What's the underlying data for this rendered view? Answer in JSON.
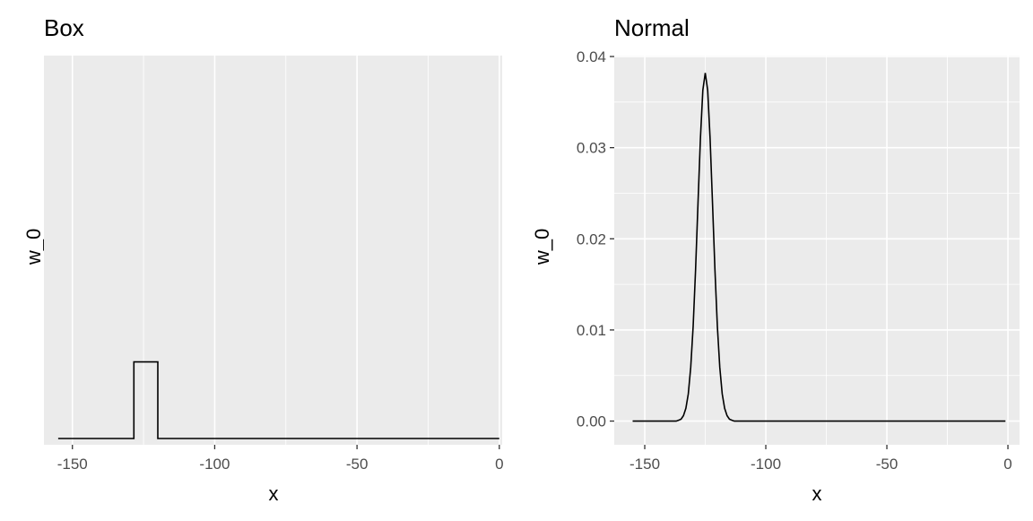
{
  "chart_data": [
    {
      "type": "line",
      "title": "Box",
      "xlabel": "x",
      "ylabel": "w_0",
      "xlim": [
        -160,
        1
      ],
      "xticks": [
        -150,
        -100,
        -50,
        0
      ],
      "xtick_labels": [
        "-150",
        "-100",
        "-50",
        "0"
      ],
      "yticks": [],
      "ylim": [
        0,
        5
      ],
      "grid": true,
      "series": [
        {
          "name": "box",
          "x": [
            -155,
            -128.4,
            -128.4,
            -120,
            -120,
            0
          ],
          "y": [
            0,
            0,
            1,
            1,
            0,
            0
          ]
        }
      ]
    },
    {
      "type": "line",
      "title": "Normal",
      "xlabel": "x",
      "ylabel": "w_0",
      "xlim": [
        -162.6,
        4.8
      ],
      "ylim": [
        -0.0026,
        0.0401
      ],
      "xticks": [
        -150,
        -100,
        -50,
        0
      ],
      "xtick_labels": [
        "-150",
        "-100",
        "-50",
        "0"
      ],
      "yticks": [
        0,
        0.01,
        0.02,
        0.03,
        0.04
      ],
      "ytick_labels": [
        "0.00",
        "0.01",
        "0.02",
        "0.03",
        "0.04"
      ],
      "grid": true,
      "series": [
        {
          "name": "normal",
          "x": [
            -155,
            -137,
            -136,
            -135,
            -134,
            -133,
            -132,
            -131,
            -130,
            -129,
            -128,
            -127,
            -126,
            -125,
            -124,
            -123,
            -122,
            -121,
            -120,
            -119,
            -118,
            -117,
            -116,
            -115,
            -114,
            -113,
            -1
          ],
          "y": [
            0,
            0,
            0.0001,
            0.0002,
            0.0006,
            0.0014,
            0.003,
            0.0059,
            0.0104,
            0.0166,
            0.0239,
            0.031,
            0.0363,
            0.0382,
            0.0363,
            0.031,
            0.0239,
            0.0166,
            0.0104,
            0.0059,
            0.003,
            0.0014,
            0.0006,
            0.0002,
            0.0001,
            0,
            0
          ]
        }
      ]
    }
  ]
}
